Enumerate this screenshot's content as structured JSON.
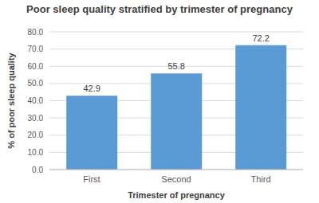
{
  "chart_data": {
    "type": "bar",
    "title": "Poor sleep quality stratified by trimester of pregnancy",
    "xlabel": "Trimester of pregnancy",
    "ylabel": "% of poor sleep quality",
    "categories": [
      "First",
      "Second",
      "Third"
    ],
    "values": [
      42.9,
      55.8,
      72.2
    ],
    "color": "#5b9bd5",
    "ylim": [
      0,
      80
    ],
    "yticks": [
      {
        "value": 0,
        "label": "0.0"
      },
      {
        "value": 10,
        "label": "10.0"
      },
      {
        "value": 20,
        "label": "20.0"
      },
      {
        "value": 30,
        "label": "30.0"
      },
      {
        "value": 40,
        "label": "40.0"
      },
      {
        "value": 50,
        "label": "50.0"
      },
      {
        "value": 60,
        "label": "60.0"
      },
      {
        "value": 70,
        "label": "70.0"
      },
      {
        "value": 80,
        "label": "80.0"
      }
    ],
    "grid": true,
    "data_labels": true
  }
}
